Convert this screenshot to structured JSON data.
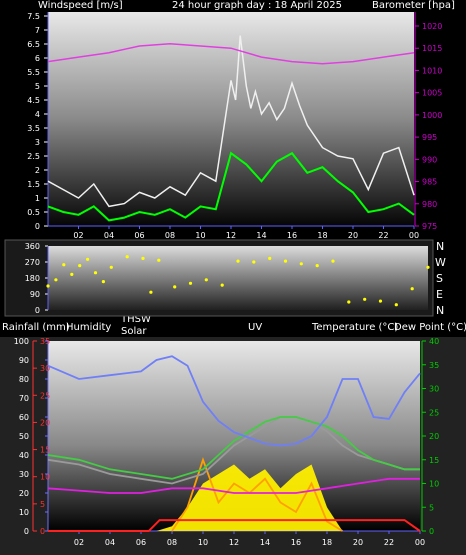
{
  "header": {
    "windspeed_label": "Windspeed [m/s]",
    "graph_title": "24 hour graph day : 18 April 2025",
    "barometer_label": "Barometer [hpa]"
  },
  "compass": {
    "n": "N",
    "w": "W",
    "s": "S",
    "e": "E"
  },
  "mid_header": {
    "rainfall": "Rainfall (mm)",
    "humidity": "Humidity",
    "thsw": "THSW",
    "solar": "Solar",
    "uv": "UV",
    "temperature": "Temperature (°C)",
    "dew_point": "Dew Point (°C)"
  },
  "colors": {
    "gust": "#f0f0f0",
    "wind": "#00ff00",
    "barometer": "#e040e0",
    "direction": "#ffff00",
    "humidity": "#6f7ff7",
    "temperature": "#44cc44",
    "thsw": "#9a9a9a",
    "solar": "#ffee00",
    "uv": "#ffa000",
    "dewpoint": "#e020e0",
    "rain": "#ff2020",
    "left_axis": "#7070ff",
    "right_axis_top": "#cc00cc",
    "right_axis_bottom": "#00cc00",
    "rain_axis": "#ff3030"
  },
  "chart_data": [
    {
      "type": "line",
      "title": "24 hour graph day : 18 April 2025",
      "ylabel": "Windspeed [m/s]",
      "y2label": "Barometer [hpa]",
      "x_ticks": [
        "02",
        "04",
        "06",
        "08",
        "10",
        "12",
        "14",
        "16",
        "18",
        "20",
        "22",
        "00"
      ],
      "ylim": [
        0,
        7.5
      ],
      "y_ticks": [
        "0",
        "0.5",
        "1",
        "1.5",
        "2",
        "2.5",
        "3",
        "3.5",
        "4",
        "4.5",
        "5",
        "5.5",
        "6",
        "6.5",
        "7",
        "7.5"
      ],
      "y2lim": [
        975,
        1020
      ],
      "y2_ticks": [
        "975",
        "980",
        "985",
        "990",
        "995",
        "1000",
        "1005",
        "1010",
        "1015",
        "1020"
      ],
      "series": [
        {
          "name": "",
          "color": "#f0f0f0",
          "x": [
            0,
            1,
            2,
            3,
            4,
            5,
            6,
            7,
            8,
            9,
            10,
            11,
            12,
            12.3,
            12.6,
            13,
            13.3,
            13.6,
            14,
            14.5,
            15,
            15.5,
            16,
            16.5,
            17,
            18,
            19,
            20,
            21,
            22,
            23,
            24
          ],
          "values": [
            1.6,
            1.3,
            1.0,
            1.5,
            0.7,
            0.8,
            1.2,
            1.0,
            1.4,
            1.1,
            1.9,
            1.6,
            5.2,
            4.5,
            6.8,
            5.0,
            4.2,
            4.8,
            4.0,
            4.4,
            3.8,
            4.2,
            5.1,
            4.3,
            3.6,
            2.8,
            2.5,
            2.4,
            1.3,
            2.6,
            2.8,
            1.1
          ]
        },
        {
          "name": "",
          "color": "#00ff00",
          "x": [
            0,
            1,
            2,
            3,
            4,
            5,
            6,
            7,
            8,
            9,
            10,
            11,
            12,
            13,
            14,
            15,
            16,
            17,
            18,
            19,
            20,
            21,
            22,
            23,
            24
          ],
          "values": [
            0.7,
            0.5,
            0.4,
            0.7,
            0.2,
            0.3,
            0.5,
            0.4,
            0.6,
            0.3,
            0.7,
            0.6,
            2.6,
            2.2,
            1.6,
            2.3,
            2.6,
            1.9,
            2.1,
            1.6,
            1.2,
            0.5,
            0.6,
            0.8,
            0.4
          ]
        },
        {
          "name": "",
          "color": "#e040e0",
          "axis": "right",
          "x": [
            0,
            2,
            4,
            6,
            8,
            10,
            12,
            14,
            16,
            18,
            20,
            22,
            24
          ],
          "values": [
            1012,
            1013,
            1014,
            1015.5,
            1016,
            1015.5,
            1015,
            1013,
            1012,
            1011.5,
            1012,
            1013,
            1014
          ]
        }
      ]
    },
    {
      "type": "scatter",
      "ylim": [
        0,
        360
      ],
      "y_ticks": [
        "0",
        "90",
        "180",
        "270",
        "360"
      ],
      "x": [
        0,
        0.5,
        1,
        1.5,
        2,
        2.5,
        3,
        3.5,
        4,
        5,
        6,
        6.5,
        7,
        8,
        9,
        10,
        11,
        12,
        13,
        14,
        15,
        16,
        17,
        18,
        19,
        20,
        21,
        22,
        23,
        24
      ],
      "values": [
        135,
        170,
        255,
        200,
        250,
        285,
        210,
        160,
        240,
        300,
        290,
        100,
        280,
        130,
        150,
        170,
        140,
        275,
        270,
        290,
        275,
        260,
        250,
        275,
        45,
        60,
        50,
        30,
        120,
        240
      ],
      "color": "#ffff00"
    },
    {
      "type": "line",
      "ylim_left": [
        0,
        100
      ],
      "y_ticks_left": [
        "0",
        "10",
        "20",
        "30",
        "40",
        "50",
        "60",
        "70",
        "80",
        "90",
        "100"
      ],
      "ylim_right": [
        0,
        40
      ],
      "y_ticks_right": [
        "0",
        "5",
        "10",
        "15",
        "20",
        "25",
        "30",
        "35",
        "40"
      ],
      "rain_ticks": [
        "0",
        "5",
        "10",
        "15",
        "20",
        "25",
        "30",
        "35"
      ],
      "x_ticks": [
        "02",
        "04",
        "06",
        "08",
        "10",
        "12",
        "14",
        "16",
        "18",
        "20",
        "22",
        "00"
      ],
      "series": [
        {
          "name": "Humidity",
          "color": "#6f7ff7",
          "axis": "left",
          "x": [
            0,
            2,
            4,
            6,
            7,
            8,
            9,
            10,
            11,
            12,
            13,
            14,
            15,
            16,
            17,
            18,
            19,
            20,
            21,
            22,
            23,
            24
          ],
          "values": [
            87,
            80,
            82,
            84,
            90,
            92,
            87,
            68,
            58,
            52,
            49,
            46,
            45,
            46,
            50,
            60,
            80,
            80,
            60,
            59,
            73,
            83
          ]
        },
        {
          "name": "Temperature",
          "color": "#44cc44",
          "axis": "right",
          "x": [
            0,
            2,
            4,
            6,
            8,
            10,
            11,
            12,
            13,
            14,
            15,
            16,
            17,
            18,
            19,
            20,
            21,
            22,
            23,
            24
          ],
          "values": [
            16,
            15,
            13,
            12,
            11,
            13,
            16,
            19,
            21,
            23,
            24,
            24,
            23,
            22,
            20,
            17,
            15,
            14,
            13,
            13
          ]
        },
        {
          "name": "THSW",
          "color": "#9a9a9a",
          "axis": "right",
          "x": [
            0,
            2,
            4,
            6,
            8,
            10,
            11,
            12,
            13,
            14,
            15,
            16,
            17,
            18,
            19,
            20,
            21,
            22,
            23,
            24
          ],
          "values": [
            15,
            14,
            12,
            11,
            10,
            12,
            15,
            18,
            20,
            22,
            24,
            24,
            23,
            21,
            18,
            16,
            15,
            14,
            13,
            13
          ]
        },
        {
          "name": "Dew Point",
          "color": "#e020e0",
          "axis": "right",
          "x": [
            0,
            2,
            4,
            6,
            8,
            10,
            12,
            14,
            16,
            18,
            20,
            22,
            24
          ],
          "values": [
            9,
            8.5,
            8,
            8,
            9,
            9,
            8,
            8,
            8,
            9,
            10,
            11,
            11
          ]
        },
        {
          "name": "Solar",
          "color": "#ffee00",
          "axis": "right",
          "x": [
            7,
            8,
            9,
            10,
            11,
            12,
            13,
            14,
            15,
            16,
            17,
            18,
            19
          ],
          "values": [
            0,
            1,
            5,
            10,
            12,
            14,
            11,
            13,
            9,
            12,
            14,
            5,
            0
          ]
        },
        {
          "name": "UV",
          "color": "#ffa000",
          "axis": "right",
          "x": [
            8,
            9,
            10,
            11,
            12,
            13,
            14,
            15,
            16,
            17,
            18,
            19
          ],
          "values": [
            0,
            5,
            15,
            6,
            10,
            8,
            11,
            6,
            4,
            10,
            2,
            0
          ]
        },
        {
          "name": "Rainfall",
          "color": "#ff2020",
          "axis": "rain",
          "x": [
            0,
            6.5,
            7.2,
            8,
            16,
            23,
            24
          ],
          "values": [
            0,
            0,
            2,
            2,
            2,
            2,
            0
          ]
        }
      ]
    }
  ]
}
